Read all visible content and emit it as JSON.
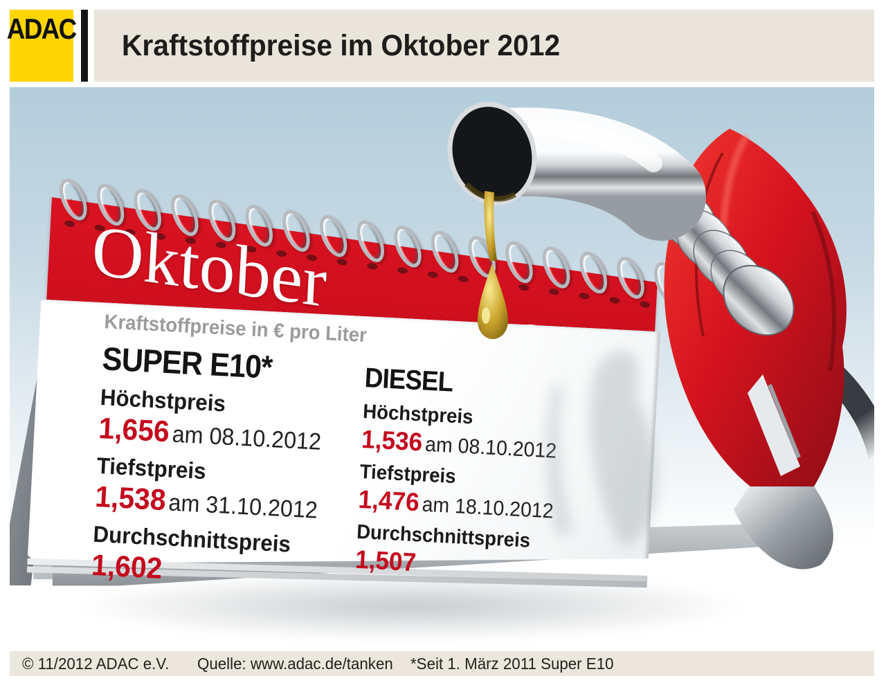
{
  "header": {
    "logo": "ADAC",
    "title": "Kraftstoffpreise im Oktober 2012"
  },
  "calendar": {
    "month": "Oktober",
    "year": "2012",
    "subtitle": "Kraftstoffpreise in € pro Liter",
    "columns": [
      {
        "fuel": "SUPER E10*",
        "high_label": "Höchstpreis",
        "high_price": "1,656",
        "high_date": "am 08.10.2012",
        "low_label": "Tiefstpreis",
        "low_price": "1,538",
        "low_date": "am 31.10.2012",
        "avg_label": "Durchschnittspreis",
        "avg_price": "1,602"
      },
      {
        "fuel": "DIESEL",
        "high_label": "Höchstpreis",
        "high_price": "1,536",
        "high_date": "am 08.10.2012",
        "low_label": "Tiefstpreis",
        "low_price": "1,476",
        "low_date": "am 18.10.2012",
        "avg_label": "Durchschnittspreis",
        "avg_price": "1,507"
      }
    ]
  },
  "footer": {
    "copyright": "© 11/2012 ADAC e.V.",
    "source": "Quelle: www.adac.de/tanken",
    "note": "*Seit 1. März 2011 Super E10"
  },
  "illustration": {
    "nozzle": "red fuel pump nozzle with chrome spout dripping oil onto desk calendar",
    "drop": "oil drop"
  },
  "colors": {
    "adac_yellow": "#ffd500",
    "calendar_red": "#cf0f1e",
    "price_red": "#c40a1e",
    "subtitle_gray": "#9b9b9b",
    "header_strip_beige": "#e9e5da",
    "footer_strip_beige": "#ece7dc",
    "background_blue_top": "#b4cddb",
    "nozzle_red": "#d6131f",
    "oil_gold": "#caa22c"
  }
}
